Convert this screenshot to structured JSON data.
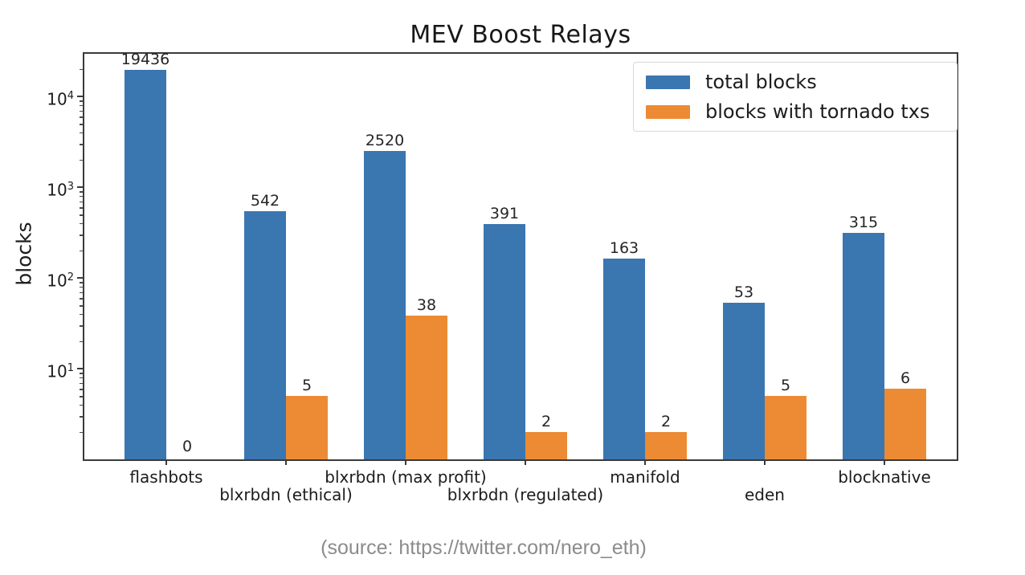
{
  "title": "MEV Boost Relays",
  "y_axis_label": "blocks",
  "source_caption": "(source: https://twitter.com/nero_eth)",
  "colors": {
    "total_blocks": "#3a76b0",
    "tornado_blocks": "#ec8b33",
    "spine": "#3a3a3a",
    "text": "#1c1c1c",
    "source_text": "#8b8b8b"
  },
  "chart_data": {
    "type": "bar",
    "title": "MEV Boost Relays",
    "xlabel": "",
    "ylabel": "blocks",
    "yscale": "log",
    "ylim": [
      1,
      28000
    ],
    "grid": false,
    "legend_position": "upper right",
    "y_tick_exponents": [
      1,
      2,
      3,
      4
    ],
    "minor_ticks": true,
    "categories": [
      "flashbots",
      "blxrbdn (ethical)",
      "blxrbdn (max profit)",
      "blxrbdn (regulated)",
      "manifold",
      "eden",
      "blocknative"
    ],
    "series": [
      {
        "name": "total blocks",
        "color": "#3a76b0",
        "values": [
          19436,
          542,
          2520,
          391,
          163,
          53,
          315
        ]
      },
      {
        "name": "blocks with tornado txs",
        "color": "#ec8b33",
        "values": [
          0,
          5,
          38,
          2,
          2,
          5,
          6
        ]
      }
    ]
  }
}
